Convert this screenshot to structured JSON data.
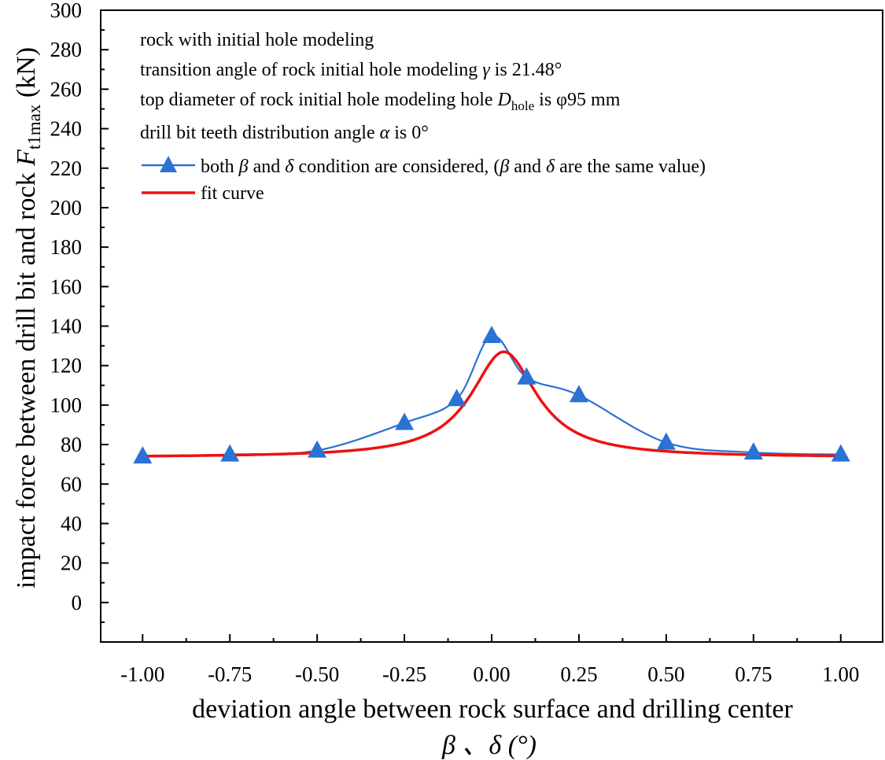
{
  "chart_data": {
    "type": "line",
    "title": "",
    "xlabel": "deviation angle between rock surface and drilling center",
    "xlabel_line2": "β 、δ  (°)",
    "ylabel_prefix": "impact force between drill bit and rock ",
    "ylabel_var": "F",
    "ylabel_sub": "t1max",
    "ylabel_unit": " (kN)",
    "xlim": [
      -1.12,
      1.12
    ],
    "ylim": [
      -20,
      300
    ],
    "x_ticks": [
      "-1.00",
      "-0.75",
      "-0.50",
      "-0.25",
      "0.00",
      "0.25",
      "0.50",
      "0.75",
      "1.00"
    ],
    "x_tick_values": [
      -1.0,
      -0.75,
      -0.5,
      -0.25,
      0.0,
      0.25,
      0.5,
      0.75,
      1.0
    ],
    "y_ticks": [
      "0",
      "20",
      "40",
      "60",
      "80",
      "100",
      "120",
      "140",
      "160",
      "180",
      "200",
      "220",
      "240",
      "260",
      "280",
      "300"
    ],
    "y_tick_values": [
      0,
      20,
      40,
      60,
      80,
      100,
      120,
      140,
      160,
      180,
      200,
      220,
      240,
      260,
      280,
      300
    ],
    "grid": false,
    "legend_position": "top-left",
    "annotations": {
      "line1": "rock with initial hole modeling",
      "line2_pre": "transition angle of rock initial hole modeling ",
      "line2_var": "γ",
      "line2_post": " is 21.48°",
      "line3_pre": "top diameter of rock initial hole modeling hole ",
      "line3_var": "D",
      "line3_sub": "hole",
      "line3_post": " is φ95 mm",
      "line4_pre": "drill bit teeth distribution angle ",
      "line4_var": "α",
      "line4_post": " is 0°"
    },
    "legend": {
      "s1_a": "both ",
      "s1_b": "β",
      "s1_c": " and ",
      "s1_d": "δ",
      "s1_e": " condition are considered, (",
      "s1_f": "β",
      "s1_g": " and ",
      "s1_h": "δ",
      "s1_i": " are the same value)",
      "s2": "fit curve"
    },
    "series": [
      {
        "name": "both β and δ condition are considered, (β and δ are the same value)",
        "color": "#2a72d4",
        "marker": "triangle",
        "x": [
          -1.0,
          -0.75,
          -0.5,
          -0.25,
          -0.1,
          0.0,
          0.1,
          0.25,
          0.5,
          0.75,
          1.0
        ],
        "y": [
          74,
          75,
          77,
          91,
          103,
          135,
          114,
          105,
          81,
          76,
          75
        ]
      },
      {
        "name": "fit curve",
        "color": "#ee1111",
        "fit": {
          "type": "lorentz",
          "y0": 73.5,
          "A": 53.5,
          "xc": 0.035,
          "w": 0.115
        }
      }
    ]
  }
}
